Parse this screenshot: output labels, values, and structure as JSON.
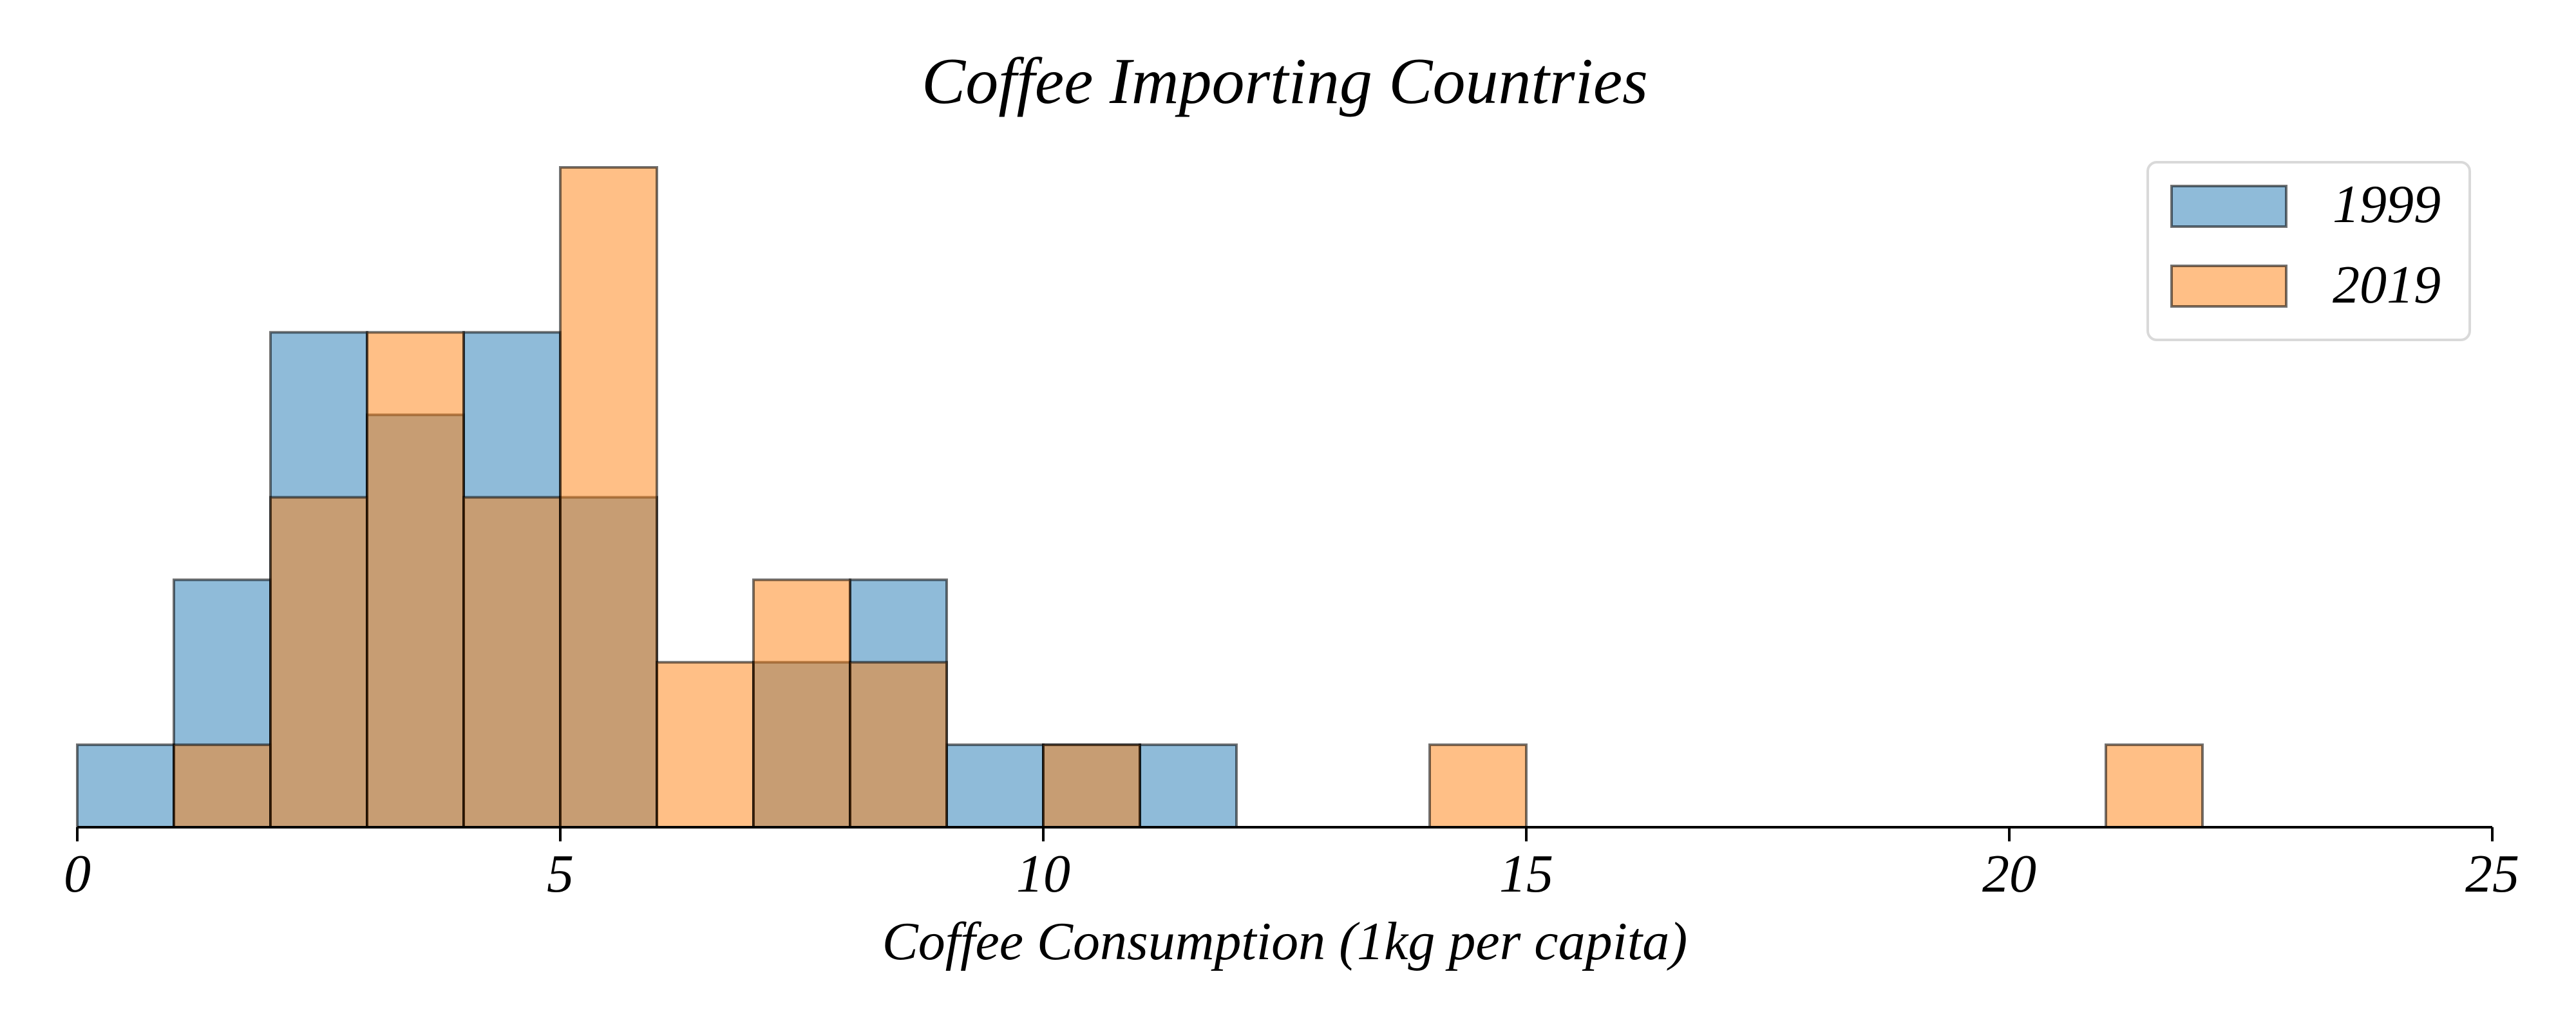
{
  "chart_data": {
    "type": "bar",
    "title": "Coffee Importing Countries",
    "xlabel": "Coffee Consumption (1kg per capita)",
    "ylabel": "",
    "xlim": [
      0,
      25
    ],
    "ylim": [
      0,
      8
    ],
    "x_ticks": [
      0,
      5,
      10,
      15,
      20,
      25
    ],
    "x_tick_labels": [
      "0",
      "5",
      "10",
      "15",
      "20",
      "25"
    ],
    "bin_width": 1,
    "series": [
      {
        "name": "1999",
        "color": "#1f77b4",
        "bin_starts": [
          0,
          1,
          2,
          3,
          4,
          5,
          7,
          8,
          9,
          10,
          11
        ],
        "values": [
          1,
          3,
          6,
          5,
          6,
          4,
          2,
          3,
          1,
          1,
          1
        ]
      },
      {
        "name": "2019",
        "color": "#ff7f0e",
        "bin_starts": [
          1,
          2,
          3,
          4,
          5,
          6,
          7,
          8,
          10,
          14,
          21
        ],
        "values": [
          1,
          4,
          6,
          4,
          8,
          2,
          3,
          2,
          1,
          1,
          1
        ]
      }
    ],
    "legend": {
      "position": "top-right",
      "entries": [
        "1999",
        "2019"
      ]
    },
    "grid": false,
    "bar_alpha": 0.5,
    "bar_edge_color": "#000000"
  }
}
